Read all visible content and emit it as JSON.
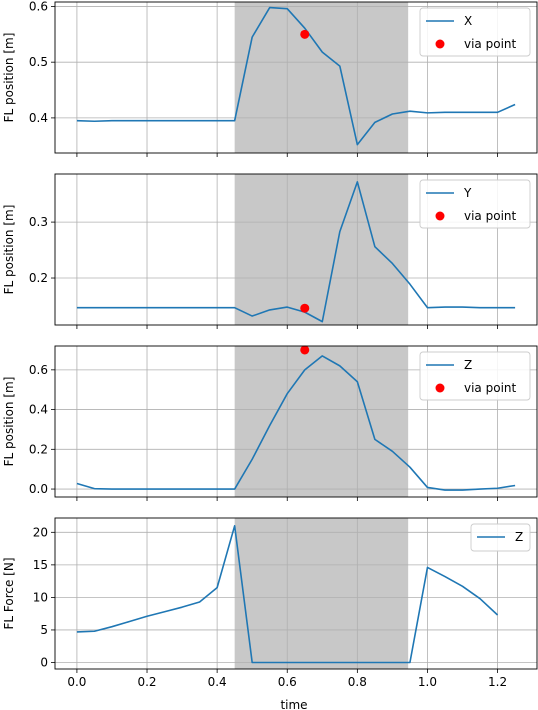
{
  "figure": {
    "xlabel": "time"
  },
  "colors": {
    "line": "#1f77b4",
    "via": "#ff0000",
    "shade": "#c8c8c8",
    "grid": "#b0b0b0"
  },
  "chart_data": [
    {
      "type": "line",
      "ylabel": "FL position [m]",
      "xlim": [
        -0.0625,
        1.3125
      ],
      "ylim": [
        0.337,
        0.608
      ],
      "yticks": [
        0.4,
        0.5,
        0.6
      ],
      "ytick_labels": [
        "0.4",
        "0.5",
        "0.6"
      ],
      "shaded_region": [
        0.45,
        0.945
      ],
      "legend": {
        "placement": "top-right",
        "entries": [
          "X",
          "via point"
        ]
      },
      "series": [
        {
          "name": "X",
          "x": [
            0.0,
            0.05,
            0.1,
            0.15,
            0.2,
            0.25,
            0.3,
            0.35,
            0.4,
            0.45,
            0.5,
            0.55,
            0.6,
            0.65,
            0.7,
            0.75,
            0.8,
            0.85,
            0.9,
            0.95,
            1.0,
            1.05,
            1.1,
            1.15,
            1.2,
            1.25
          ],
          "y": [
            0.395,
            0.394,
            0.395,
            0.395,
            0.395,
            0.395,
            0.395,
            0.395,
            0.395,
            0.395,
            0.545,
            0.598,
            0.596,
            0.561,
            0.518,
            0.493,
            0.352,
            0.392,
            0.407,
            0.412,
            0.409,
            0.41,
            0.41,
            0.41,
            0.41,
            0.424
          ]
        }
      ],
      "via_points": [
        {
          "x": 0.65,
          "y": 0.55
        }
      ]
    },
    {
      "type": "line",
      "ylabel": "FL position [m]",
      "xlim": [
        -0.0625,
        1.3125
      ],
      "ylim": [
        0.116,
        0.386
      ],
      "yticks": [
        0.2,
        0.3
      ],
      "ytick_labels": [
        "0.2",
        "0.3"
      ],
      "shaded_region": [
        0.45,
        0.945
      ],
      "legend": {
        "placement": "top-right",
        "entries": [
          "Y",
          "via point"
        ]
      },
      "series": [
        {
          "name": "Y",
          "x": [
            0.0,
            0.05,
            0.1,
            0.15,
            0.2,
            0.25,
            0.3,
            0.35,
            0.4,
            0.45,
            0.5,
            0.55,
            0.6,
            0.65,
            0.7,
            0.75,
            0.8,
            0.85,
            0.9,
            0.95,
            1.0,
            1.05,
            1.1,
            1.15,
            1.2,
            1.25
          ],
          "y": [
            0.147,
            0.147,
            0.147,
            0.147,
            0.147,
            0.147,
            0.147,
            0.147,
            0.147,
            0.147,
            0.132,
            0.143,
            0.148,
            0.139,
            0.122,
            0.283,
            0.372,
            0.256,
            0.226,
            0.189,
            0.147,
            0.148,
            0.148,
            0.147,
            0.147,
            0.147
          ]
        }
      ],
      "via_points": [
        {
          "x": 0.65,
          "y": 0.146
        }
      ]
    },
    {
      "type": "line",
      "ylabel": "FL position [m]",
      "xlim": [
        -0.0625,
        1.3125
      ],
      "ylim": [
        -0.04,
        0.72
      ],
      "yticks": [
        0.0,
        0.2,
        0.4,
        0.6
      ],
      "ytick_labels": [
        "0.0",
        "0.2",
        "0.4",
        "0.6"
      ],
      "shaded_region": [
        0.45,
        0.945
      ],
      "legend": {
        "placement": "top-right",
        "entries": [
          "Z",
          "via point"
        ]
      },
      "series": [
        {
          "name": "Z",
          "x": [
            0.0,
            0.05,
            0.1,
            0.15,
            0.2,
            0.25,
            0.3,
            0.35,
            0.4,
            0.45,
            0.5,
            0.55,
            0.6,
            0.65,
            0.7,
            0.75,
            0.8,
            0.85,
            0.9,
            0.95,
            1.0,
            1.05,
            1.1,
            1.15,
            1.2,
            1.25
          ],
          "y": [
            0.028,
            0.002,
            0.0,
            0.0,
            0.0,
            0.0,
            0.0,
            0.0,
            0.0,
            0.0,
            0.15,
            0.32,
            0.48,
            0.6,
            0.67,
            0.62,
            0.54,
            0.25,
            0.19,
            0.11,
            0.008,
            -0.005,
            -0.005,
            0.0,
            0.004,
            0.018
          ]
        }
      ],
      "via_points": [
        {
          "x": 0.65,
          "y": 0.7
        }
      ]
    },
    {
      "type": "line",
      "ylabel": "FL Force [N]",
      "xlabel": "time",
      "xlim": [
        -0.0625,
        1.3125
      ],
      "ylim": [
        -1.0,
        22.2
      ],
      "yticks": [
        0,
        5,
        10,
        15,
        20
      ],
      "ytick_labels": [
        "0",
        "5",
        "10",
        "15",
        "20"
      ],
      "xticks": [
        0.0,
        0.2,
        0.4,
        0.6,
        0.8,
        1.0,
        1.2
      ],
      "xtick_labels": [
        "0.0",
        "0.2",
        "0.4",
        "0.6",
        "0.8",
        "1.0",
        "1.2"
      ],
      "shaded_region": [
        0.45,
        0.945
      ],
      "legend": {
        "placement": "top-right",
        "entries": [
          "Z"
        ]
      },
      "series": [
        {
          "name": "Z",
          "x": [
            0.0,
            0.05,
            0.1,
            0.15,
            0.2,
            0.25,
            0.3,
            0.35,
            0.4,
            0.45,
            0.5,
            0.55,
            0.6,
            0.65,
            0.7,
            0.75,
            0.8,
            0.85,
            0.9,
            0.95,
            1.0,
            1.05,
            1.1,
            1.15,
            1.2
          ],
          "y": [
            4.7,
            4.8,
            5.5,
            6.3,
            7.1,
            7.8,
            8.5,
            9.3,
            11.5,
            21.0,
            0.0,
            0.0,
            0.0,
            0.0,
            0.0,
            0.0,
            0.0,
            0.0,
            0.0,
            0.0,
            14.6,
            13.2,
            11.7,
            9.8,
            7.3
          ]
        }
      ],
      "via_points": []
    }
  ]
}
